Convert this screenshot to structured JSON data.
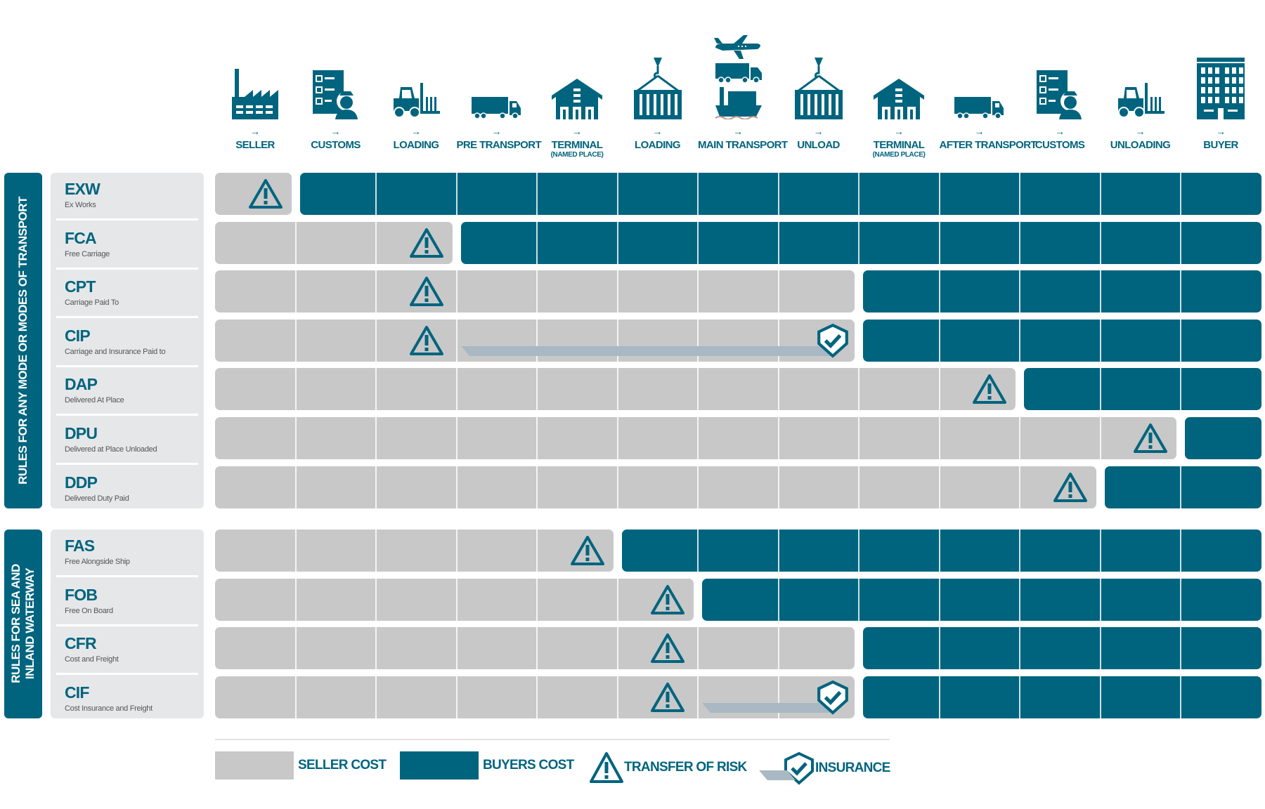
{
  "colors": {
    "seller": "#c8c8c8",
    "buyer": "#00647e",
    "insurance": "#a9b8c2",
    "label_bg": "#e6e7e8"
  },
  "stages": [
    {
      "label": "SELLER",
      "icon": "factory-icon"
    },
    {
      "label": "CUSTOMS",
      "icon": "customs-officer-icon"
    },
    {
      "label": "LOADING",
      "icon": "forklift-icon"
    },
    {
      "label": "PRE TRANSPORT",
      "icon": "truck-icon"
    },
    {
      "label": "TERMINAL",
      "sub": "(NAMED PLACE)",
      "icon": "warehouse-icon"
    },
    {
      "label": "LOADING",
      "icon": "crane-container-icon"
    },
    {
      "label": "MAIN TRANSPORT",
      "icon": "plane-truck-ship-icon"
    },
    {
      "label": "UNLOAD",
      "icon": "crane-container-icon"
    },
    {
      "label": "TERMINAL",
      "sub": "(NAMED PLACE)",
      "icon": "warehouse-icon"
    },
    {
      "label": "AFTER TRANSPORT",
      "icon": "truck-icon"
    },
    {
      "label": "CUSTOMS",
      "icon": "customs-officer-icon"
    },
    {
      "label": "UNLOADING",
      "icon": "forklift-icon"
    },
    {
      "label": "BUYER",
      "icon": "office-building-icon"
    }
  ],
  "arrow": "→",
  "groups": [
    {
      "title": "RULES FOR ANY MODE OR MODES OF TRANSPORT",
      "rules": [
        {
          "code": "EXW",
          "name": "Ex Works",
          "seller_stages": 1,
          "risk_stage": 1
        },
        {
          "code": "FCA",
          "name": "Free Carriage",
          "seller_stages": 3,
          "risk_stage": 3
        },
        {
          "code": "CPT",
          "name": "Carriage Paid To",
          "seller_stages": 8,
          "risk_stage": 3
        },
        {
          "code": "CIP",
          "name": "Carriage and Insurance Paid to",
          "seller_stages": 8,
          "risk_stage": 3,
          "insurance_from": 4,
          "insurance_to": 8
        },
        {
          "code": "DAP",
          "name": "Delivered At Place",
          "seller_stages": 10,
          "risk_stage": 10
        },
        {
          "code": "DPU",
          "name": "Delivered at Place Unloaded",
          "seller_stages": 12,
          "risk_stage": 12
        },
        {
          "code": "DDP",
          "name": "Delivered Duty Paid",
          "seller_stages": 11,
          "risk_stage": 11
        }
      ]
    },
    {
      "title": "RULES FOR SEA AND INLAND WATERWAY",
      "rules": [
        {
          "code": "FAS",
          "name": "Free Alongside Ship",
          "seller_stages": 5,
          "risk_stage": 5
        },
        {
          "code": "FOB",
          "name": "Free On Board",
          "seller_stages": 6,
          "risk_stage": 6
        },
        {
          "code": "CFR",
          "name": "Cost and Freight",
          "seller_stages": 8,
          "risk_stage": 6
        },
        {
          "code": "CIF",
          "name": "Cost Insurance and Freight",
          "seller_stages": 8,
          "risk_stage": 6,
          "insurance_from": 7,
          "insurance_to": 8
        }
      ]
    }
  ],
  "legend": {
    "seller": "SELLER COST",
    "buyer": "BUYERS COST",
    "risk": "TRANSFER OF RISK",
    "insurance": "INSURANCE"
  }
}
